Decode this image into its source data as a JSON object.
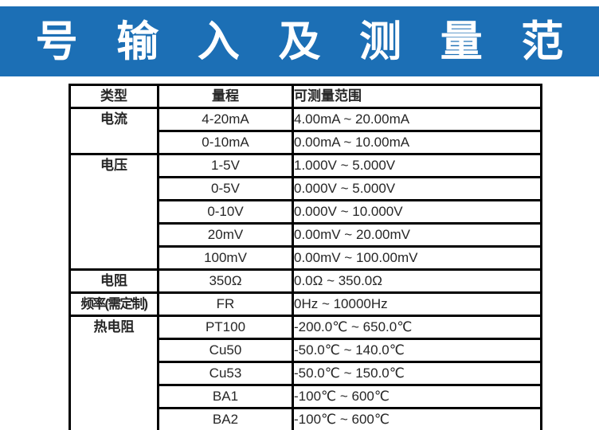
{
  "banner": {
    "title": "信 号 输 入 及 测 量 范 围",
    "bg_color": "#1c6fb5",
    "text_color": "#ffffff"
  },
  "table": {
    "headers": {
      "type": "类型",
      "range": "量程",
      "measurable": "可测量范围"
    },
    "groups": [
      {
        "type": "电流",
        "rows": [
          {
            "range": "4-20mA",
            "measurable": "4.00mA ~ 20.00mA"
          },
          {
            "range": "0-10mA",
            "measurable": "0.00mA ~ 10.00mA"
          }
        ]
      },
      {
        "type": "电压",
        "rows": [
          {
            "range": "1-5V",
            "measurable": "1.000V ~ 5.000V"
          },
          {
            "range": "0-5V",
            "measurable": "0.000V ~ 5.000V"
          },
          {
            "range": "0-10V",
            "measurable": "0.000V ~ 10.000V"
          },
          {
            "range": "20mV",
            "measurable": "0.00mV ~ 20.00mV"
          },
          {
            "range": "100mV",
            "measurable": "0.00mV ~ 100.00mV"
          }
        ]
      },
      {
        "type": "电阻",
        "rows": [
          {
            "range": "350Ω",
            "measurable": "0.0Ω ~ 350.0Ω"
          }
        ]
      },
      {
        "type": "频率(需定制)",
        "rows": [
          {
            "range": "FR",
            "measurable": "0Hz ~ 10000Hz"
          }
        ]
      },
      {
        "type": "热电阻",
        "rows": [
          {
            "range": "PT100",
            "measurable": "-200.0℃ ~ 650.0℃"
          },
          {
            "range": "Cu50",
            "measurable": "-50.0℃ ~ 140.0℃"
          },
          {
            "range": "Cu53",
            "measurable": "-50.0℃ ~ 150.0℃"
          },
          {
            "range": "BA1",
            "measurable": "-100℃ ~ 600℃"
          },
          {
            "range": "BA2",
            "measurable": "-100℃ ~ 600℃"
          }
        ]
      }
    ]
  }
}
